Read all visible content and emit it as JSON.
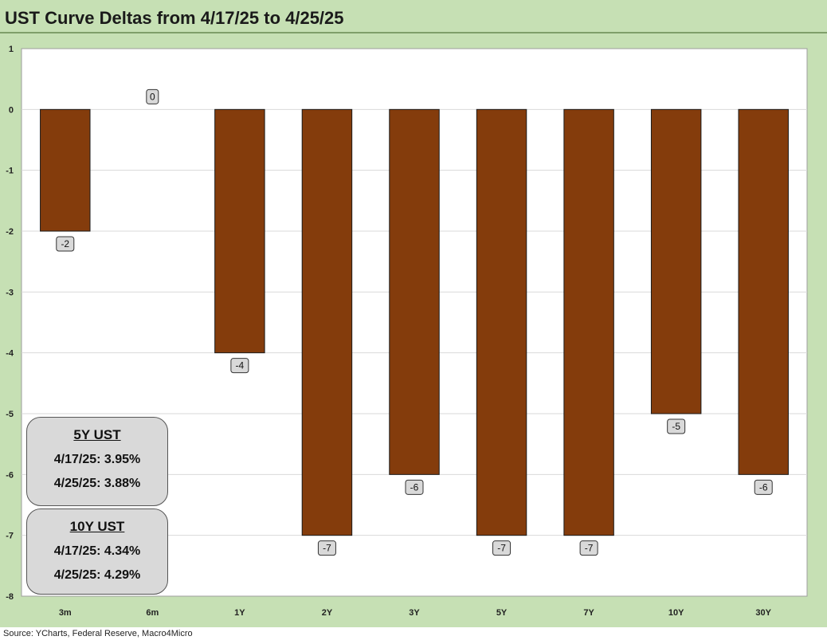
{
  "chart_data": {
    "type": "bar",
    "title": "UST Curve Deltas from 4/17/25 to 4/25/25",
    "categories": [
      "3m",
      "6m",
      "1Y",
      "2Y",
      "3Y",
      "5Y",
      "7Y",
      "10Y",
      "30Y"
    ],
    "values": [
      -2,
      0,
      -4,
      -7,
      -6,
      -7,
      -7,
      -5,
      -6
    ],
    "data_labels": [
      "-2",
      "0",
      "-4",
      "-7",
      "-6",
      "-7",
      "-7",
      "-5",
      "-6"
    ],
    "ylim": [
      -8,
      1
    ],
    "yticks": [
      1,
      0,
      -1,
      -2,
      -3,
      -4,
      -5,
      -6,
      -7,
      -8
    ],
    "ytick_labels": [
      "1",
      "0",
      "-1",
      "-2",
      "-3",
      "-4",
      "-5",
      "-6",
      "-7",
      "-8"
    ],
    "xlabel": "",
    "ylabel": "",
    "grid": true,
    "bar_color": "#843c0c",
    "frame_color": "#c6e0b4",
    "label_box_color": "#d9d9d9"
  },
  "info_boxes": [
    {
      "title": "5Y UST",
      "line1": "4/17/25: 3.95%",
      "line2": "4/25/25: 3.88%"
    },
    {
      "title": "10Y UST",
      "line1": "4/17/25: 4.34%",
      "line2": "4/25/25: 4.29%"
    }
  ],
  "source": "Source: YCharts, Federal Reserve, Macro4Micro"
}
